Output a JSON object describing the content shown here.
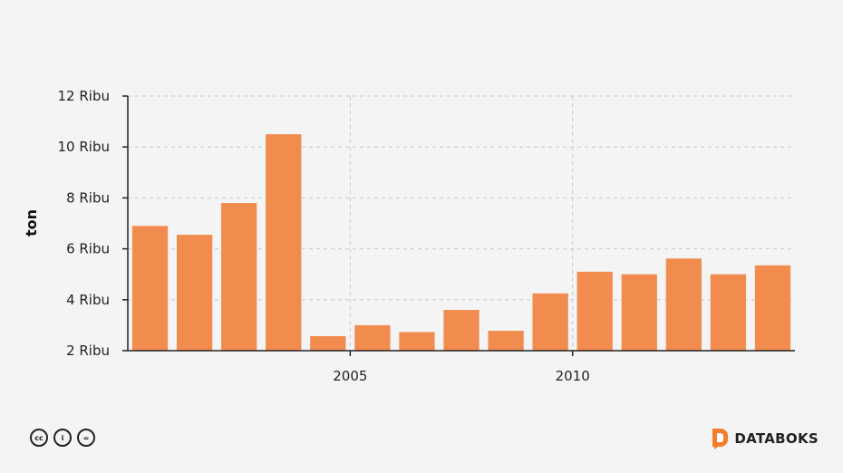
{
  "chart_data": {
    "type": "bar",
    "x": [
      2000,
      2001,
      2002,
      2003,
      2004,
      2005,
      2006,
      2007,
      2008,
      2009,
      2010,
      2011,
      2012,
      2013,
      2014
    ],
    "values": [
      6900,
      6550,
      7800,
      10500,
      2570,
      3000,
      2730,
      3600,
      2780,
      4250,
      5100,
      5000,
      5620,
      5000,
      5350
    ],
    "xticks": [
      {
        "value": 2005,
        "label": "2005"
      },
      {
        "value": 2010,
        "label": "2010"
      }
    ],
    "yticks": [
      {
        "value": 2000,
        "label": "2 Ribu"
      },
      {
        "value": 4000,
        "label": "4 Ribu"
      },
      {
        "value": 6000,
        "label": "6 Ribu"
      },
      {
        "value": 8000,
        "label": "8 Ribu"
      },
      {
        "value": 10000,
        "label": "10 Ribu"
      },
      {
        "value": 12000,
        "label": "12 Ribu"
      }
    ],
    "ylabel": "ton",
    "xlabel": "",
    "title": "",
    "ylim": [
      2000,
      12000
    ],
    "grid": true,
    "bar_color": "#f28c4e"
  },
  "footer": {
    "license_icons": [
      "cc-icon",
      "by-icon",
      "nd-icon"
    ],
    "license_glyphs": [
      "cc",
      "i",
      "="
    ],
    "brand": "DATABOKS",
    "brand_color": "#f47c2a"
  }
}
